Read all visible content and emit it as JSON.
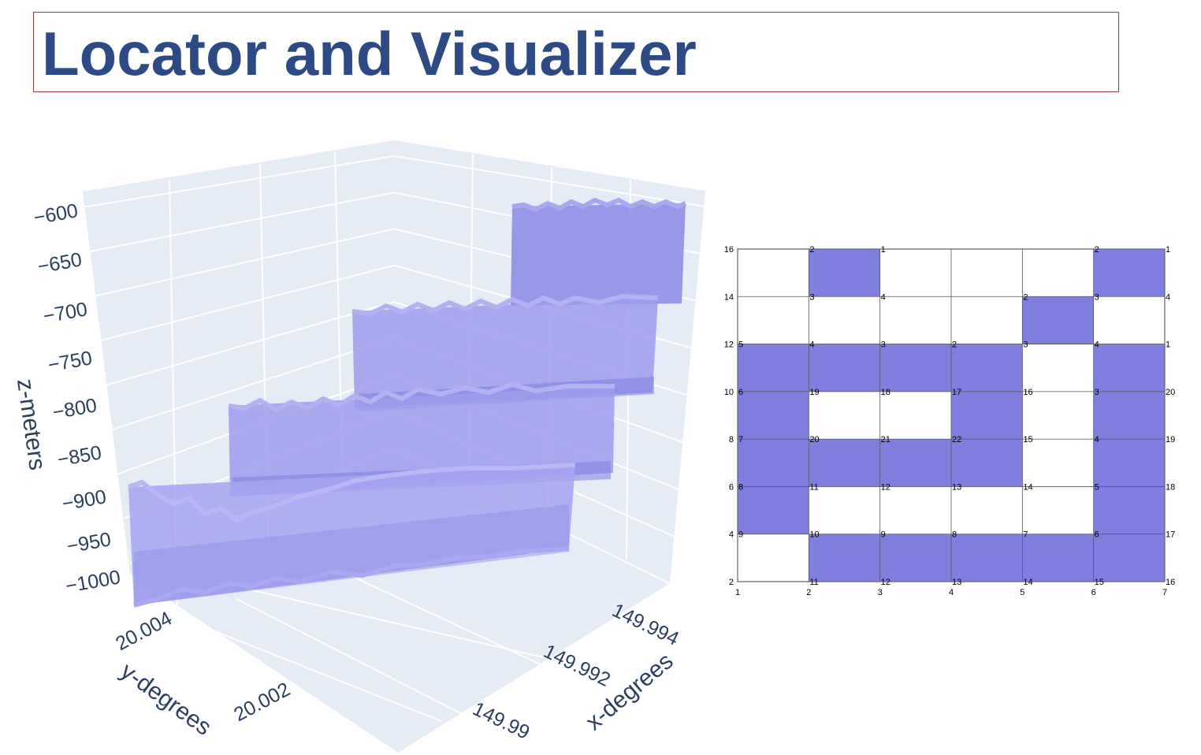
{
  "title": "Locator and Visualizer",
  "colors": {
    "title": "#2c4a84",
    "frame": "#9b3a3a",
    "fill": "#7f7fe0",
    "scene_bg": "#e5ecf6",
    "axis_text": "#2a3f5f"
  },
  "chart_data": [
    {
      "type": "3d-surface",
      "xlabel": "x-degrees",
      "ylabel": "y-degrees",
      "zlabel": "z-meters",
      "x_ticks": [
        "149.99",
        "149.992",
        "149.994"
      ],
      "y_ticks": [
        "20.002",
        "20.004"
      ],
      "z_ticks": [
        "-600",
        "-650",
        "-700",
        "-750",
        "-800",
        "-850",
        "-900",
        "-950",
        "-1000"
      ],
      "zlim": [
        -1000,
        -600
      ],
      "grid": true
    },
    {
      "type": "grid",
      "xlim": [
        1,
        7
      ],
      "ylim": [
        2,
        16
      ],
      "x_ticks": [
        "1",
        "2",
        "3",
        "4",
        "5",
        "6",
        "7"
      ],
      "y_ticks": [
        "2",
        "4",
        "6",
        "8",
        "10",
        "12",
        "14",
        "16"
      ],
      "filled_cells": [
        {
          "x": 2,
          "y": 14
        },
        {
          "x": 6,
          "y": 14
        },
        {
          "x": 5,
          "y": 12
        },
        {
          "x": 1,
          "y": 10
        },
        {
          "x": 2,
          "y": 10
        },
        {
          "x": 3,
          "y": 10
        },
        {
          "x": 4,
          "y": 10
        },
        {
          "x": 6,
          "y": 10
        },
        {
          "x": 1,
          "y": 8
        },
        {
          "x": 4,
          "y": 8
        },
        {
          "x": 6,
          "y": 8
        },
        {
          "x": 1,
          "y": 6
        },
        {
          "x": 2,
          "y": 6
        },
        {
          "x": 3,
          "y": 6
        },
        {
          "x": 4,
          "y": 6
        },
        {
          "x": 6,
          "y": 6
        },
        {
          "x": 1,
          "y": 4
        },
        {
          "x": 6,
          "y": 4
        },
        {
          "x": 2,
          "y": 2
        },
        {
          "x": 3,
          "y": 2
        },
        {
          "x": 4,
          "y": 2
        },
        {
          "x": 5,
          "y": 2
        },
        {
          "x": 6,
          "y": 2
        }
      ],
      "point_labels": [
        {
          "x": 2,
          "y": 16,
          "t": "2"
        },
        {
          "x": 3,
          "y": 16,
          "t": "1"
        },
        {
          "x": 6,
          "y": 16,
          "t": "2"
        },
        {
          "x": 7,
          "y": 16,
          "t": "1"
        },
        {
          "x": 2,
          "y": 14,
          "t": "3"
        },
        {
          "x": 3,
          "y": 14,
          "t": "4"
        },
        {
          "x": 5,
          "y": 14,
          "t": "2"
        },
        {
          "x": 6,
          "y": 14,
          "t": "3"
        },
        {
          "x": 7,
          "y": 14,
          "t": "4"
        },
        {
          "x": 1,
          "y": 12,
          "t": "5"
        },
        {
          "x": 2,
          "y": 12,
          "t": "4"
        },
        {
          "x": 3,
          "y": 12,
          "t": "3"
        },
        {
          "x": 4,
          "y": 12,
          "t": "2"
        },
        {
          "x": 5,
          "y": 12,
          "t": "3"
        },
        {
          "x": 6,
          "y": 12,
          "t": "4"
        },
        {
          "x": 7,
          "y": 12,
          "t": "1"
        },
        {
          "x": 1,
          "y": 10,
          "t": "6"
        },
        {
          "x": 2,
          "y": 10,
          "t": "19"
        },
        {
          "x": 3,
          "y": 10,
          "t": "18"
        },
        {
          "x": 4,
          "y": 10,
          "t": "17"
        },
        {
          "x": 5,
          "y": 10,
          "t": "16"
        },
        {
          "x": 6,
          "y": 10,
          "t": "3"
        },
        {
          "x": 7,
          "y": 10,
          "t": "20"
        },
        {
          "x": 1,
          "y": 8,
          "t": "7"
        },
        {
          "x": 2,
          "y": 8,
          "t": "20"
        },
        {
          "x": 3,
          "y": 8,
          "t": "21"
        },
        {
          "x": 4,
          "y": 8,
          "t": "22"
        },
        {
          "x": 5,
          "y": 8,
          "t": "15"
        },
        {
          "x": 6,
          "y": 8,
          "t": "4"
        },
        {
          "x": 7,
          "y": 8,
          "t": "19"
        },
        {
          "x": 1,
          "y": 6,
          "t": "8"
        },
        {
          "x": 2,
          "y": 6,
          "t": "11"
        },
        {
          "x": 3,
          "y": 6,
          "t": "12"
        },
        {
          "x": 4,
          "y": 6,
          "t": "13"
        },
        {
          "x": 5,
          "y": 6,
          "t": "14"
        },
        {
          "x": 6,
          "y": 6,
          "t": "5"
        },
        {
          "x": 7,
          "y": 6,
          "t": "18"
        },
        {
          "x": 1,
          "y": 4,
          "t": "9"
        },
        {
          "x": 2,
          "y": 4,
          "t": "10"
        },
        {
          "x": 3,
          "y": 4,
          "t": "9"
        },
        {
          "x": 4,
          "y": 4,
          "t": "8"
        },
        {
          "x": 5,
          "y": 4,
          "t": "7"
        },
        {
          "x": 6,
          "y": 4,
          "t": "6"
        },
        {
          "x": 7,
          "y": 4,
          "t": "17"
        },
        {
          "x": 2,
          "y": 2,
          "t": "11"
        },
        {
          "x": 3,
          "y": 2,
          "t": "12"
        },
        {
          "x": 4,
          "y": 2,
          "t": "13"
        },
        {
          "x": 5,
          "y": 2,
          "t": "14"
        },
        {
          "x": 6,
          "y": 2,
          "t": "15"
        },
        {
          "x": 7,
          "y": 2,
          "t": "16"
        }
      ]
    }
  ]
}
